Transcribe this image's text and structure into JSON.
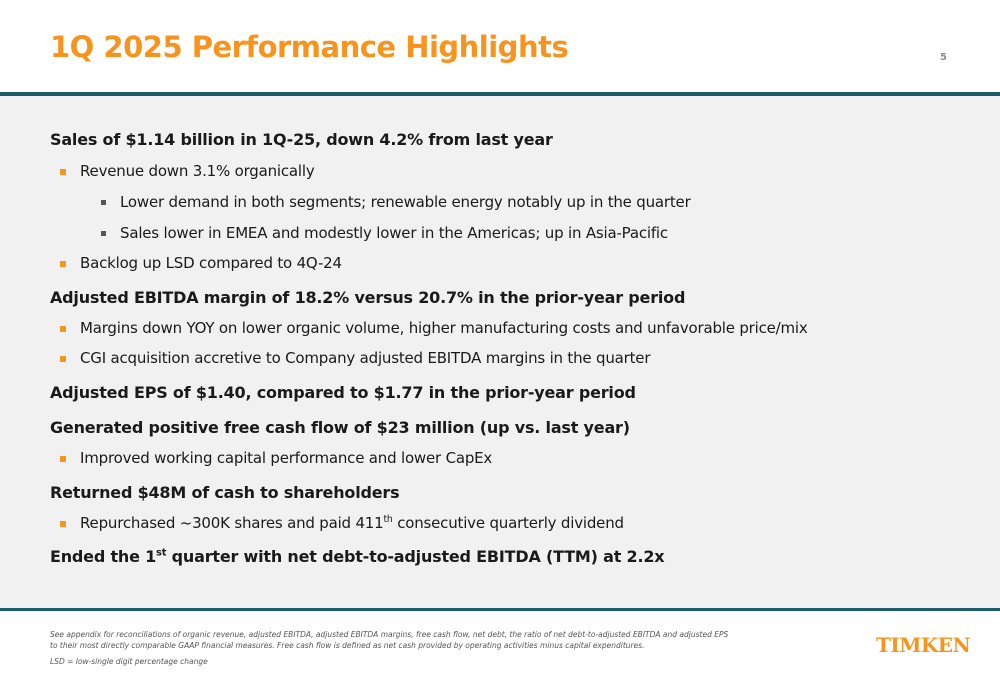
{
  "header": {
    "title": "1Q 2025 Performance Highlights",
    "page_number": "5"
  },
  "highlights": {
    "sales": {
      "headline": "Sales of $1.14 billion in 1Q-25, down 4.2% from last year",
      "revenue": "Revenue down 3.1% organically",
      "demand": "Lower demand in both segments; renewable energy notably up in the quarter",
      "regions": "Sales lower in EMEA and modestly lower in the Americas; up in Asia-Pacific",
      "backlog": "Backlog up LSD compared to 4Q-24"
    },
    "ebitda": {
      "headline": "Adjusted EBITDA margin of 18.2% versus 20.7% in the prior-year period",
      "margins": "Margins down YOY on lower organic volume, higher manufacturing costs and unfavorable price/mix",
      "cgi": "CGI acquisition accretive to Company adjusted EBITDA margins in the quarter"
    },
    "eps": {
      "headline": "Adjusted EPS of $1.40, compared to $1.77 in the prior-year period"
    },
    "cash_flow": {
      "headline": "Generated positive free cash flow of $23 million (up vs. last year)",
      "working_capital": "Improved working capital performance and lower CapEx"
    },
    "shareholders": {
      "headline": "Returned $48M of cash to shareholders",
      "repurchase_pre": "Repurchased ~300K shares and paid 411",
      "repurchase_sup": "th",
      "repurchase_post": " consecutive quarterly dividend"
    },
    "debt": {
      "headline_pre": "Ended the 1",
      "headline_sup": "st",
      "headline_post": " quarter with net debt-to-adjusted EBITDA (TTM) at 2.2x"
    }
  },
  "footer": {
    "note_line1": "See appendix for reconciliations of organic revenue, adjusted EBITDA, adjusted EBITDA margins, free cash flow, net debt, the ratio of net debt-to-adjusted EBITDA and adjusted EPS",
    "note_line2": "to their most directly comparable GAAP financial measures. Free cash flow is defined as net cash provided by operating activities minus capital expenditures.",
    "lsd_note": "LSD = low-single digit percentage change",
    "logo_text": "TIMKEN"
  },
  "colors": {
    "accent": "#f7941d",
    "rule": "#1d5d6b",
    "content_bg": "#f1f1f1"
  }
}
